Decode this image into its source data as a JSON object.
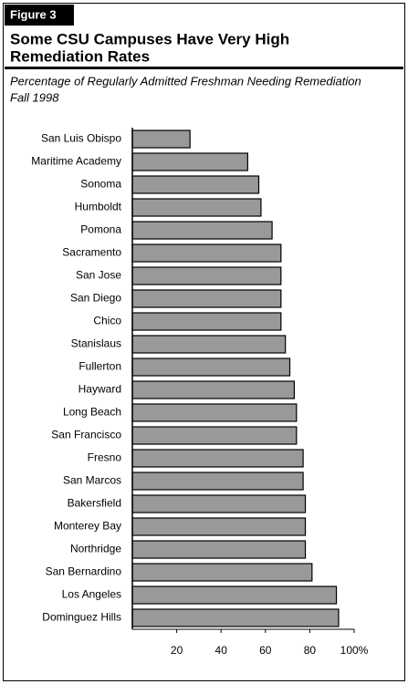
{
  "chart_data": {
    "type": "barh",
    "figure_label": "Figure 3",
    "title": [
      "Some CSU Campuses Have Very High",
      "Remediation Rates"
    ],
    "subtitle": [
      "Percentage of Regularly Admitted Freshman Needing Remediation",
      "Fall 1998"
    ],
    "categories": [
      "San Luis Obispo",
      "Maritime Academy",
      "Sonoma",
      "Humboldt",
      "Pomona",
      "Sacramento",
      "San Jose",
      "San Diego",
      "Chico",
      "Stanislaus",
      "Fullerton",
      "Hayward",
      "Long Beach",
      "San Francisco",
      "Fresno",
      "San Marcos",
      "Bakersfield",
      "Monterey Bay",
      "Northridge",
      "San Bernardino",
      "Los Angeles",
      "Dominguez Hills"
    ],
    "values": [
      26,
      52,
      57,
      58,
      63,
      67,
      67,
      67,
      67,
      69,
      71,
      73,
      74,
      74,
      77,
      77,
      78,
      78,
      78,
      81,
      92,
      93
    ],
    "color": "#999999",
    "xlim": [
      0,
      100
    ],
    "xticks": [
      20,
      40,
      60,
      80,
      {
        "value": 100,
        "label": "100%"
      }
    ]
  }
}
